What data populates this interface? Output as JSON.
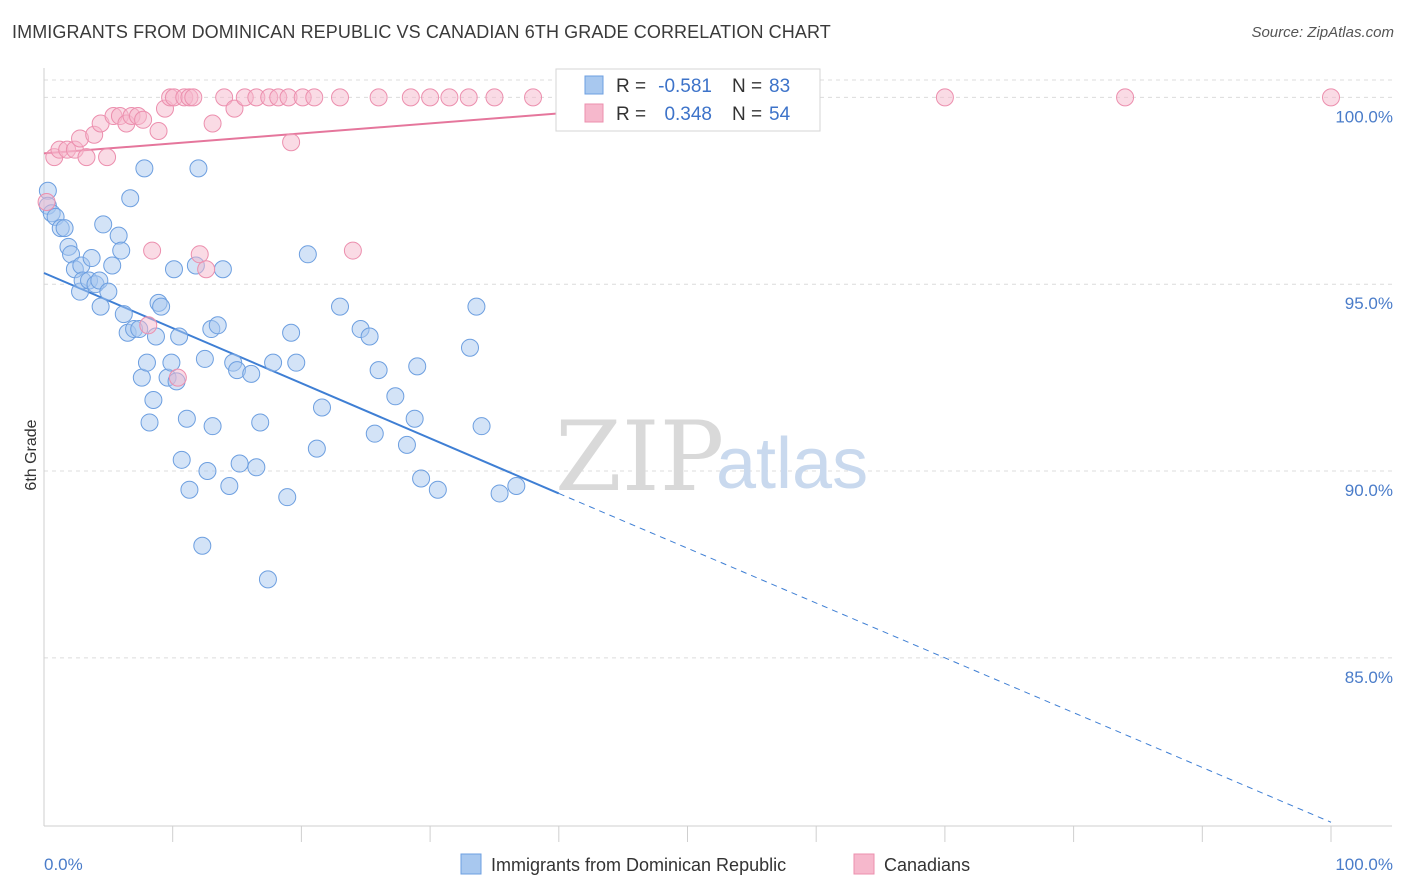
{
  "header": {
    "title": "IMMIGRANTS FROM DOMINICAN REPUBLIC VS CANADIAN 6TH GRADE CORRELATION CHART",
    "source": "Source: ZipAtlas.com"
  },
  "watermark": {
    "zip": "ZIP",
    "atlas": "atlas"
  },
  "legend_box": {
    "rows": [
      {
        "r_label": "R =",
        "r_value": "-0.581",
        "n_label": "N =",
        "n_value": "83",
        "color": "#a8c8ef",
        "stroke": "#6d9fe0"
      },
      {
        "r_label": "R =",
        "r_value": "0.348",
        "n_label": "N =",
        "n_value": "54",
        "color": "#f6b8cc",
        "stroke": "#ec8fae"
      }
    ]
  },
  "chart_data": {
    "type": "scatter",
    "title": "IMMIGRANTS FROM DOMINICAN REPUBLIC VS CANADIAN 6TH GRADE CORRELATION CHART",
    "xlabel": "",
    "ylabel": "6th Grade",
    "xlim": [
      0,
      100
    ],
    "ylim": [
      80.5,
      101.0
    ],
    "x_tick_labels": [
      {
        "value": 0,
        "label": "0.0%"
      },
      {
        "value": 100,
        "label": "100.0%"
      }
    ],
    "x_minor_ticks": [
      10,
      20,
      30,
      40,
      50,
      60,
      70,
      80,
      90,
      100
    ],
    "y_ticks": [
      {
        "value": 100,
        "label": "100.0%"
      },
      {
        "value": 95,
        "label": "95.0%"
      },
      {
        "value": 90,
        "label": "90.0%"
      },
      {
        "value": 85,
        "label": "85.0%"
      }
    ],
    "grid": true,
    "legend_position": "bottom",
    "series": [
      {
        "name": "Immigrants from Dominican Republic",
        "color": "#a8c8ef",
        "stroke": "#6d9fe0",
        "trend": {
          "x0": 0,
          "y0": 95.3,
          "x1": 40,
          "y1": 89.4,
          "dash_to_x": 100,
          "dash_to_y": 80.6,
          "color": "#3f7fd4"
        },
        "points": [
          [
            0.3,
            97.5
          ],
          [
            0.3,
            97.1
          ],
          [
            0.6,
            96.9
          ],
          [
            0.9,
            96.8
          ],
          [
            1.3,
            96.5
          ],
          [
            1.6,
            96.5
          ],
          [
            1.9,
            96.0
          ],
          [
            2.1,
            95.8
          ],
          [
            2.4,
            95.4
          ],
          [
            2.8,
            94.8
          ],
          [
            2.9,
            95.5
          ],
          [
            3.0,
            95.1
          ],
          [
            3.5,
            95.1
          ],
          [
            3.7,
            95.7
          ],
          [
            4.0,
            95.0
          ],
          [
            4.3,
            95.1
          ],
          [
            4.4,
            94.4
          ],
          [
            4.6,
            96.6
          ],
          [
            5.0,
            94.8
          ],
          [
            5.3,
            95.5
          ],
          [
            5.8,
            96.3
          ],
          [
            6.0,
            95.9
          ],
          [
            6.2,
            94.2
          ],
          [
            6.5,
            93.7
          ],
          [
            6.7,
            97.3
          ],
          [
            7.0,
            93.8
          ],
          [
            7.4,
            93.8
          ],
          [
            7.6,
            92.5
          ],
          [
            7.8,
            98.1
          ],
          [
            8.0,
            92.9
          ],
          [
            8.2,
            91.3
          ],
          [
            8.5,
            91.9
          ],
          [
            8.7,
            93.6
          ],
          [
            8.9,
            94.5
          ],
          [
            9.1,
            94.4
          ],
          [
            9.6,
            92.5
          ],
          [
            9.9,
            92.9
          ],
          [
            10.1,
            95.4
          ],
          [
            10.3,
            92.4
          ],
          [
            10.5,
            93.6
          ],
          [
            10.7,
            90.3
          ],
          [
            11.1,
            91.4
          ],
          [
            11.3,
            89.5
          ],
          [
            11.8,
            95.5
          ],
          [
            12.0,
            98.1
          ],
          [
            12.3,
            88.0
          ],
          [
            12.5,
            93.0
          ],
          [
            12.7,
            90.0
          ],
          [
            13.0,
            93.8
          ],
          [
            13.1,
            91.2
          ],
          [
            13.5,
            93.9
          ],
          [
            13.9,
            95.4
          ],
          [
            14.4,
            89.6
          ],
          [
            14.7,
            92.9
          ],
          [
            15.0,
            92.7
          ],
          [
            15.2,
            90.2
          ],
          [
            16.1,
            92.6
          ],
          [
            16.5,
            90.1
          ],
          [
            16.8,
            91.3
          ],
          [
            17.4,
            87.1
          ],
          [
            17.8,
            92.9
          ],
          [
            18.9,
            89.3
          ],
          [
            19.2,
            93.7
          ],
          [
            19.6,
            92.9
          ],
          [
            20.5,
            95.8
          ],
          [
            21.2,
            90.6
          ],
          [
            21.6,
            91.7
          ],
          [
            23.0,
            94.4
          ],
          [
            24.6,
            93.8
          ],
          [
            25.3,
            93.6
          ],
          [
            25.7,
            91.0
          ],
          [
            26.0,
            92.7
          ],
          [
            27.3,
            92.0
          ],
          [
            28.2,
            90.7
          ],
          [
            28.8,
            91.4
          ],
          [
            29.0,
            92.8
          ],
          [
            29.3,
            89.8
          ],
          [
            30.6,
            89.5
          ],
          [
            33.1,
            93.3
          ],
          [
            33.6,
            94.4
          ],
          [
            34.0,
            91.2
          ],
          [
            35.4,
            89.4
          ],
          [
            36.7,
            89.6
          ]
        ]
      },
      {
        "name": "Canadians",
        "color": "#f6b8cc",
        "stroke": "#ec8fae",
        "trend": {
          "x0": 0,
          "y0": 98.5,
          "x1": 56,
          "y1": 100.0,
          "color": "#e5769c"
        },
        "points": [
          [
            0.2,
            97.2
          ],
          [
            0.8,
            98.4
          ],
          [
            1.2,
            98.6
          ],
          [
            1.8,
            98.6
          ],
          [
            2.4,
            98.6
          ],
          [
            2.8,
            98.9
          ],
          [
            3.3,
            98.4
          ],
          [
            3.9,
            99.0
          ],
          [
            4.4,
            99.3
          ],
          [
            4.9,
            98.4
          ],
          [
            5.4,
            99.5
          ],
          [
            5.9,
            99.5
          ],
          [
            6.4,
            99.3
          ],
          [
            6.8,
            99.5
          ],
          [
            7.3,
            99.5
          ],
          [
            7.7,
            99.4
          ],
          [
            8.1,
            93.9
          ],
          [
            8.4,
            95.9
          ],
          [
            8.9,
            99.1
          ],
          [
            9.4,
            99.7
          ],
          [
            9.8,
            100.0
          ],
          [
            10.1,
            100.0
          ],
          [
            10.4,
            92.5
          ],
          [
            10.9,
            100.0
          ],
          [
            11.3,
            100.0
          ],
          [
            11.6,
            100.0
          ],
          [
            12.1,
            95.8
          ],
          [
            12.6,
            95.4
          ],
          [
            13.1,
            99.3
          ],
          [
            14.0,
            100.0
          ],
          [
            14.8,
            99.7
          ],
          [
            15.6,
            100.0
          ],
          [
            16.5,
            100.0
          ],
          [
            17.5,
            100.0
          ],
          [
            18.2,
            100.0
          ],
          [
            19.0,
            100.0
          ],
          [
            19.2,
            98.8
          ],
          [
            20.1,
            100.0
          ],
          [
            21.0,
            100.0
          ],
          [
            23.0,
            100.0
          ],
          [
            24.0,
            95.9
          ],
          [
            26.0,
            100.0
          ],
          [
            28.5,
            100.0
          ],
          [
            30.0,
            100.0
          ],
          [
            31.5,
            100.0
          ],
          [
            33.0,
            100.0
          ],
          [
            35.0,
            100.0
          ],
          [
            38.0,
            100.0
          ],
          [
            42.0,
            100.0
          ],
          [
            46.0,
            100.0
          ],
          [
            55.0,
            100.0
          ],
          [
            70.0,
            100.0
          ],
          [
            84.0,
            100.0
          ],
          [
            100.0,
            100.0
          ]
        ]
      }
    ]
  }
}
